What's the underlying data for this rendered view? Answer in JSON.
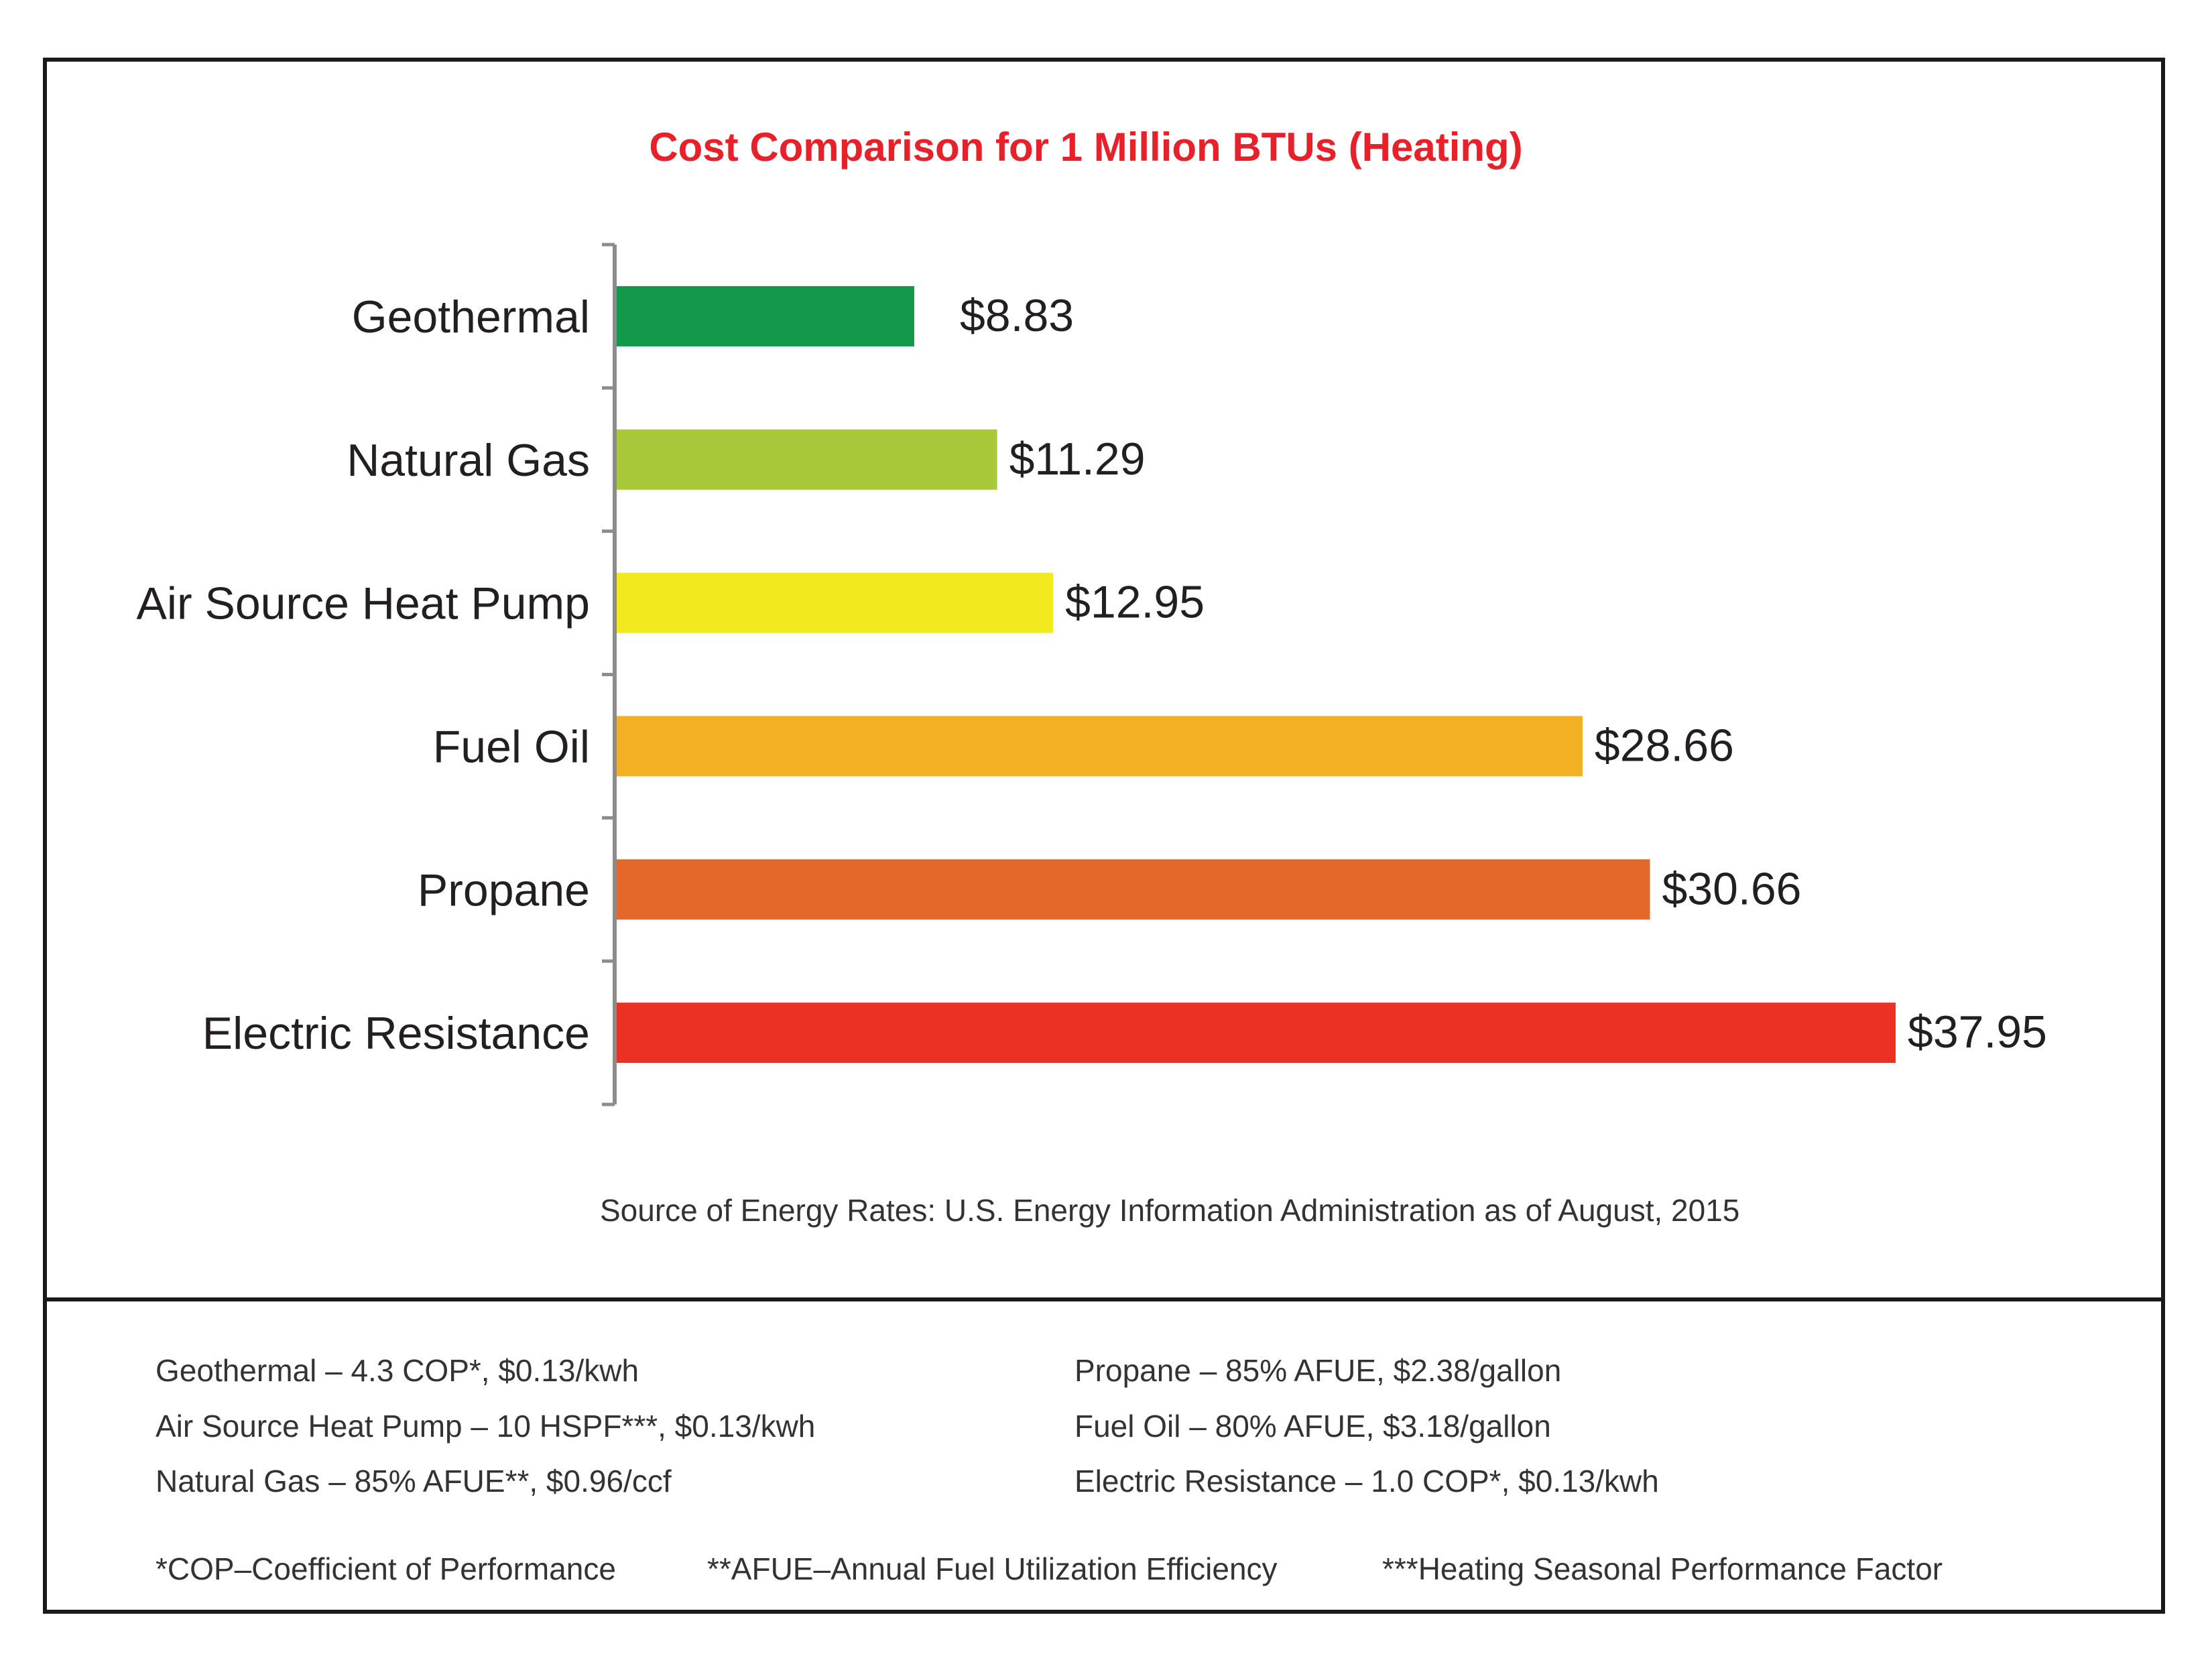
{
  "chart_data": {
    "type": "bar",
    "orientation": "horizontal",
    "title": "Cost Comparison for 1 Million BTUs (Heating)",
    "categories": [
      "Geothermal",
      "Natural Gas",
      "Air Source Heat Pump",
      "Fuel Oil",
      "Propane",
      "Electric Resistance"
    ],
    "values": [
      8.83,
      11.29,
      12.95,
      28.66,
      30.66,
      37.95
    ],
    "value_labels": [
      "$8.83",
      "$11.29",
      "$12.95",
      "$28.66",
      "$30.66",
      "$37.95"
    ],
    "colors": [
      "#12994a",
      "#a8c83a",
      "#f2ea1f",
      "#f3b025",
      "#e4682a",
      "#ea3124"
    ],
    "xlim": [
      0,
      40
    ],
    "grid": false,
    "legend": "none",
    "source": "Source of Energy Rates: U.S. Energy Information Administration as of August, 2015"
  },
  "notes": {
    "left": [
      "Geothermal – 4.3 COP*, $0.13/kwh",
      "Air Source Heat Pump – 10 HSPF***, $0.13/kwh",
      "Natural Gas – 85% AFUE**, $0.96/ccf"
    ],
    "right": [
      "Propane – 85% AFUE, $2.38/gallon",
      "Fuel Oil – 80% AFUE, $3.18/gallon",
      "Electric Resistance – 1.0 COP*, $0.13/kwh"
    ],
    "abbreviations": [
      "*COP–Coefficient of Performance",
      "**AFUE–Annual Fuel Utilization Efficiency",
      "***Heating Seasonal Performance Factor"
    ]
  }
}
